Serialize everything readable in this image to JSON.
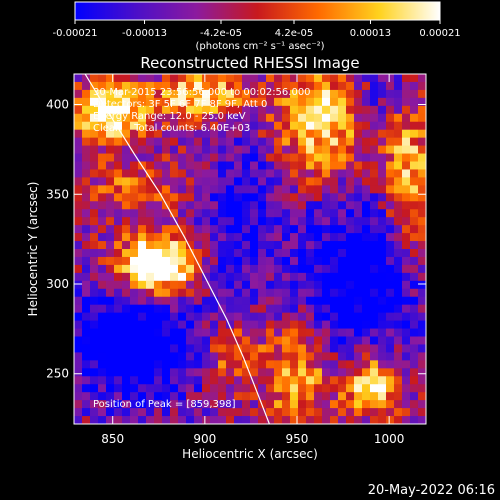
{
  "chart_data": {
    "type": "heatmap",
    "title": "Reconstructed RHESSI Image",
    "xlabel": "Heliocentric X (arcsec)",
    "ylabel": "Heliocentric Y (arcsec)",
    "xlim": [
      829,
      1020
    ],
    "ylim": [
      222,
      417
    ],
    "x_ticks": [
      850,
      900,
      950,
      1000
    ],
    "y_ticks": [
      250,
      300,
      350,
      400
    ],
    "x_tick_labels": [
      "850",
      "900",
      "950",
      "1000"
    ],
    "y_tick_labels": [
      "250",
      "300",
      "350",
      "400"
    ],
    "colorbar": {
      "range": [
        -0.00021,
        0.00021
      ],
      "tick_values": [
        -0.00021,
        -0.00013,
        -4.2e-05,
        4.2e-05,
        0.00013,
        0.00021
      ],
      "tick_labels": [
        "-0.00021",
        "-0.00013",
        "-4.2e-05",
        "4.2e-05",
        "0.00013",
        "0.00021"
      ],
      "unit_label": "(photons cm⁻² s⁻¹ asec⁻²)",
      "colors": [
        "#0000ff",
        "#4b0fc9",
        "#8c1a9e",
        "#c8191e",
        "#ff6a00",
        "#ffd21e",
        "#ffffff"
      ]
    },
    "annotations": [
      "30-Mar-2015 23:56:56.000 to 00:02:56.000",
      "Detectors: 3F 5F 6F 7F 8F 9F, Att 0",
      "Energy Range: 12.0 - 25.0 keV",
      "Clean    Total counts: 6.40E+03"
    ],
    "peak_label": "Position of Peak = [859,398]",
    "peak": [
      859,
      398
    ],
    "grid": false,
    "limb_curve": {
      "x": [
        835,
        848,
        862,
        876,
        889,
        901,
        912,
        921,
        929,
        935
      ],
      "y": [
        417,
        395,
        372,
        350,
        326,
        302,
        280,
        259,
        238,
        222
      ]
    },
    "sources": [
      {
        "x": 874,
        "y": 310,
        "sx": 14,
        "sy": 11,
        "amp": 1.0
      },
      {
        "x": 848,
        "y": 396,
        "sx": 14,
        "sy": 10,
        "amp": 0.75
      },
      {
        "x": 898,
        "y": 405,
        "sx": 16,
        "sy": 8,
        "amp": 0.6
      },
      {
        "x": 962,
        "y": 392,
        "sx": 16,
        "sy": 22,
        "amp": 0.55
      },
      {
        "x": 990,
        "y": 243,
        "sx": 10,
        "sy": 10,
        "amp": 0.75
      },
      {
        "x": 950,
        "y": 248,
        "sx": 12,
        "sy": 20,
        "amp": 0.45
      },
      {
        "x": 1010,
        "y": 360,
        "sx": 10,
        "sy": 35,
        "amp": 0.45
      },
      {
        "x": 915,
        "y": 262,
        "sx": 10,
        "sy": 12,
        "amp": 0.4
      },
      {
        "x": 862,
        "y": 355,
        "sx": 20,
        "sy": 10,
        "amp": 0.25
      }
    ],
    "troughs": [
      {
        "x": 862,
        "y": 266,
        "sx": 26,
        "sy": 22,
        "amp": 0.6
      },
      {
        "x": 985,
        "y": 305,
        "sx": 24,
        "sy": 30,
        "amp": 0.55
      },
      {
        "x": 920,
        "y": 338,
        "sx": 14,
        "sy": 30,
        "amp": 0.35
      },
      {
        "x": 1000,
        "y": 405,
        "sx": 12,
        "sy": 10,
        "amp": 0.3
      }
    ]
  },
  "footer": {
    "timestamp": "20-May-2022 06:16"
  }
}
